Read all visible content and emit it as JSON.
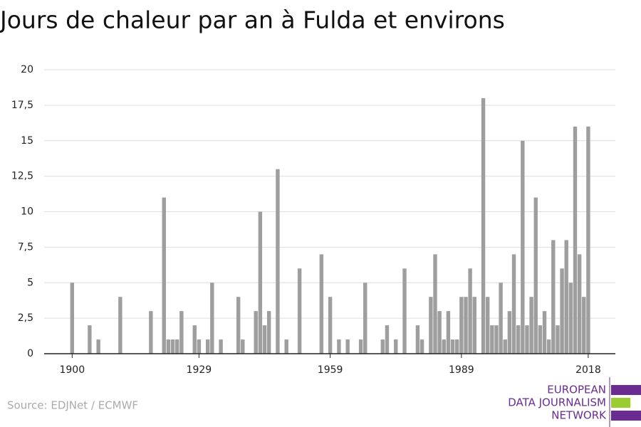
{
  "chart_data": {
    "type": "bar",
    "title": "Jours de chaleur par an à Fulda et environs",
    "source": "Source: EDJNet / ECMWF",
    "logo": [
      "EUROPEAN",
      "DATA JOURNALISM",
      "NETWORK"
    ],
    "color": "#9e9e9e",
    "x": [
      1900,
      1901,
      1902,
      1903,
      1904,
      1905,
      1906,
      1907,
      1908,
      1909,
      1910,
      1911,
      1912,
      1913,
      1914,
      1915,
      1916,
      1917,
      1918,
      1919,
      1920,
      1921,
      1922,
      1923,
      1924,
      1925,
      1926,
      1927,
      1928,
      1929,
      1930,
      1931,
      1932,
      1933,
      1934,
      1935,
      1936,
      1937,
      1938,
      1939,
      1940,
      1941,
      1942,
      1943,
      1944,
      1945,
      1946,
      1947,
      1948,
      1949,
      1950,
      1951,
      1952,
      1953,
      1954,
      1955,
      1956,
      1957,
      1958,
      1959,
      1960,
      1961,
      1962,
      1963,
      1964,
      1965,
      1966,
      1967,
      1968,
      1969,
      1970,
      1971,
      1972,
      1973,
      1974,
      1975,
      1976,
      1977,
      1978,
      1979,
      1980,
      1981,
      1982,
      1983,
      1984,
      1985,
      1986,
      1987,
      1988,
      1989,
      1990,
      1991,
      1992,
      1993,
      1994,
      1995,
      1996,
      1997,
      1998,
      1999,
      2000,
      2001,
      2002,
      2003,
      2004,
      2005,
      2006,
      2007,
      2008,
      2009,
      2010,
      2011,
      2012,
      2013,
      2014,
      2015,
      2016,
      2017,
      2018
    ],
    "values": [
      5,
      0,
      0,
      0,
      2,
      0,
      1,
      0,
      0,
      0,
      0,
      4,
      0,
      0,
      0,
      0,
      0,
      0,
      3,
      0,
      0,
      11,
      1,
      1,
      1,
      3,
      0,
      0,
      2,
      1,
      0,
      1,
      5,
      0,
      1,
      0,
      0,
      0,
      4,
      1,
      0,
      0,
      3,
      10,
      2,
      3,
      0,
      13,
      0,
      1,
      0,
      0,
      6,
      0,
      0,
      0,
      0,
      7,
      0,
      4,
      0,
      1,
      0,
      1,
      0,
      0,
      1,
      5,
      0,
      0,
      0,
      1,
      2,
      0,
      1,
      0,
      6,
      0,
      0,
      2,
      1,
      0,
      4,
      7,
      3,
      1,
      3,
      1,
      1,
      4,
      4,
      6,
      4,
      0,
      18,
      4,
      2,
      2,
      5,
      1,
      3,
      7,
      2,
      15,
      2,
      4,
      11,
      2,
      3,
      1,
      8,
      2,
      6,
      8,
      5,
      16,
      7,
      4,
      16
    ],
    "xlim": [
      1893.6,
      2024.2
    ],
    "xticks": [
      1900,
      1929,
      1959,
      1989,
      2018
    ],
    "ylim": [
      0,
      20
    ],
    "yticks": [
      0,
      {
        "value": 2.5,
        "label": "2,5"
      },
      5,
      {
        "value": 7.5,
        "label": "7,5"
      },
      10,
      {
        "value": 12.5,
        "label": "12,5"
      },
      15,
      {
        "value": 17.5,
        "label": "17,5"
      },
      20
    ],
    "grid": true
  }
}
